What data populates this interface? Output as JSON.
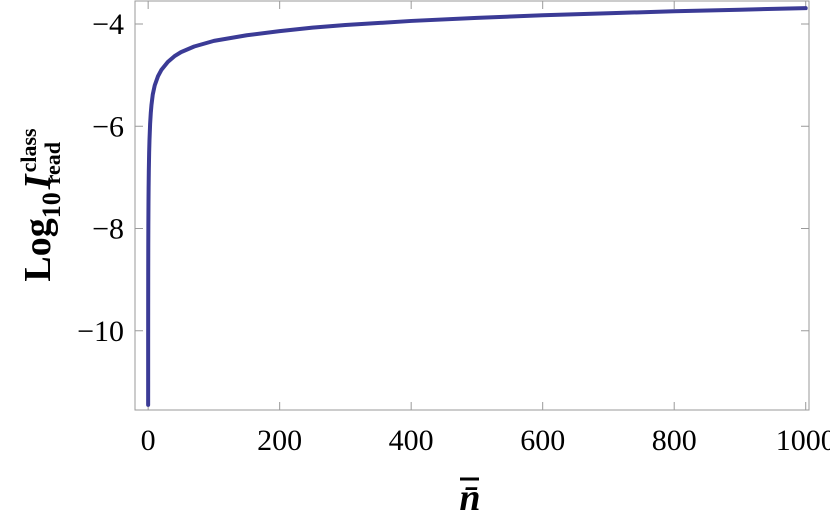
{
  "chart_data": {
    "type": "line",
    "xlabel": "n̄",
    "ylabel": {
      "base": "Log",
      "log_sub": "10",
      "symbol": "I",
      "superscript": "class",
      "subscript": "read"
    },
    "xlim": [
      -20,
      1005
    ],
    "ylim": [
      -11.55,
      -3.55
    ],
    "x_ticks": [
      0,
      200,
      400,
      600,
      800,
      1000
    ],
    "x_tick_labels": [
      "0",
      "200",
      "400",
      "600",
      "800",
      "1000"
    ],
    "y_ticks": [
      -10,
      -8,
      -6,
      -4
    ],
    "y_tick_labels": [
      "−10",
      "−8",
      "−6",
      "−4"
    ],
    "grid": false,
    "line_color": "#3b3b96",
    "series": [
      {
        "x": [
          0.005,
          0.01,
          0.02,
          0.05,
          0.1,
          0.2,
          0.3,
          0.5,
          0.7,
          1,
          1.5,
          2,
          3,
          4,
          5,
          7,
          10,
          15,
          20,
          30,
          40,
          50,
          70,
          100,
          150,
          200,
          250,
          300,
          400,
          500,
          600,
          700,
          800,
          900,
          1000
        ],
        "values": [
          -11.45,
          -10.9,
          -10.3,
          -9.5,
          -8.9,
          -8.3,
          -7.95,
          -7.5,
          -7.2,
          -6.88,
          -6.52,
          -6.28,
          -5.95,
          -5.74,
          -5.59,
          -5.38,
          -5.2,
          -5.02,
          -4.9,
          -4.74,
          -4.63,
          -4.55,
          -4.44,
          -4.33,
          -4.22,
          -4.14,
          -4.07,
          -4.02,
          -3.94,
          -3.88,
          -3.83,
          -3.79,
          -3.75,
          -3.72,
          -3.69
        ]
      }
    ]
  }
}
